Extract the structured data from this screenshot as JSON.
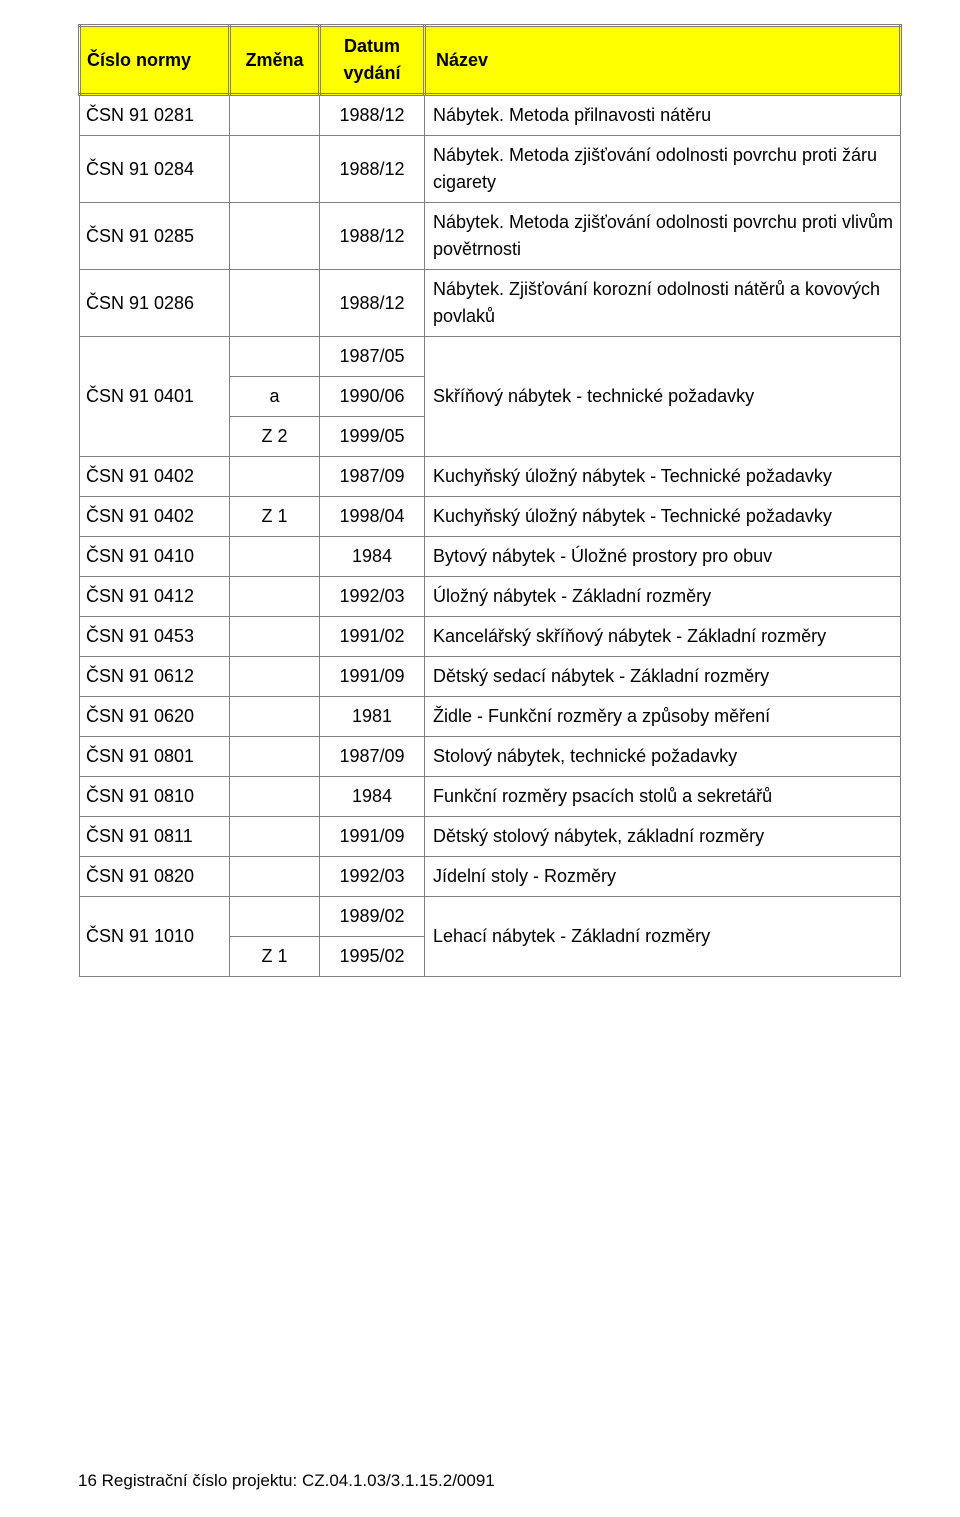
{
  "header": {
    "col0": "Číslo normy",
    "col1": "Změna",
    "col2": "Datum vydání",
    "col3": "Název"
  },
  "rows": [
    {
      "c0": "ČSN 91 0281",
      "c1": "",
      "c2": "1988/12",
      "c3": "Nábytek. Metoda přilnavosti nátěru"
    },
    {
      "c0": "ČSN 91 0284",
      "c1": "",
      "c2": "1988/12",
      "c3": "Nábytek. Metoda zjišťování odolnosti povrchu proti žáru cigarety"
    },
    {
      "c0": "ČSN 91 0285",
      "c1": "",
      "c2": "1988/12",
      "c3": "Nábytek. Metoda zjišťování odolnosti povrchu proti vlivům povětrnosti"
    },
    {
      "c0": "ČSN 91 0286",
      "c1": "",
      "c2": "1988/12",
      "c3": "Nábytek. Zjišťování korozní odolnosti nátěrů a kovových povlaků"
    }
  ],
  "group1": {
    "c0": "ČSN 91 0401",
    "r1": {
      "c1": "",
      "c2": "1987/05"
    },
    "r2": {
      "c1": "a",
      "c2": "1990/06"
    },
    "r3": {
      "c1": "Z 2",
      "c2": "1999/05"
    },
    "c3": "Skříňový nábytek - technické požadavky"
  },
  "rows2": [
    {
      "c0": "ČSN 91 0402",
      "c1": "",
      "c2": "1987/09",
      "c3": "Kuchyňský úložný nábytek - Technické požadavky"
    },
    {
      "c0": "ČSN 91 0402",
      "c1": "Z 1",
      "c2": "1998/04",
      "c3": "Kuchyňský úložný nábytek - Technické požadavky"
    },
    {
      "c0": "ČSN 91 0410",
      "c1": "",
      "c2": "1984",
      "c3": "Bytový nábytek - Úložné prostory pro obuv"
    },
    {
      "c0": "ČSN 91 0412",
      "c1": "",
      "c2": "1992/03",
      "c3": "Úložný nábytek - Základní rozměry"
    },
    {
      "c0": "ČSN 91 0453",
      "c1": "",
      "c2": "1991/02",
      "c3": "Kancelářský skříňový nábytek - Základní rozměry"
    },
    {
      "c0": "ČSN 91 0612",
      "c1": "",
      "c2": "1991/09",
      "c3": "Dětský sedací nábytek - Základní rozměry"
    },
    {
      "c0": "ČSN 91 0620",
      "c1": "",
      "c2": "1981",
      "c3": "Židle - Funkční rozměry a způsoby měření"
    },
    {
      "c0": "ČSN 91 0801",
      "c1": "",
      "c2": "1987/09",
      "c3": "Stolový nábytek, technické požadavky"
    },
    {
      "c0": "ČSN 91 0810",
      "c1": "",
      "c2": "1984",
      "c3": "Funkční rozměry psacích stolů a sekretářů"
    },
    {
      "c0": "ČSN 91 0811",
      "c1": "",
      "c2": "1991/09",
      "c3": "Dětský stolový nábytek, základní rozměry"
    },
    {
      "c0": "ČSN 91 0820",
      "c1": "",
      "c2": "1992/03",
      "c3": "Jídelní stoly - Rozměry"
    }
  ],
  "group2": {
    "c0": "ČSN 91 1010",
    "r1": {
      "c1": "",
      "c2": "1989/02"
    },
    "r2": {
      "c1": "Z 1",
      "c2": "1995/02"
    },
    "c3": "Lehací nábytek - Základní rozměry"
  },
  "footer": "16   Registrační číslo projektu: CZ.04.1.03/3.1.15.2/0091"
}
